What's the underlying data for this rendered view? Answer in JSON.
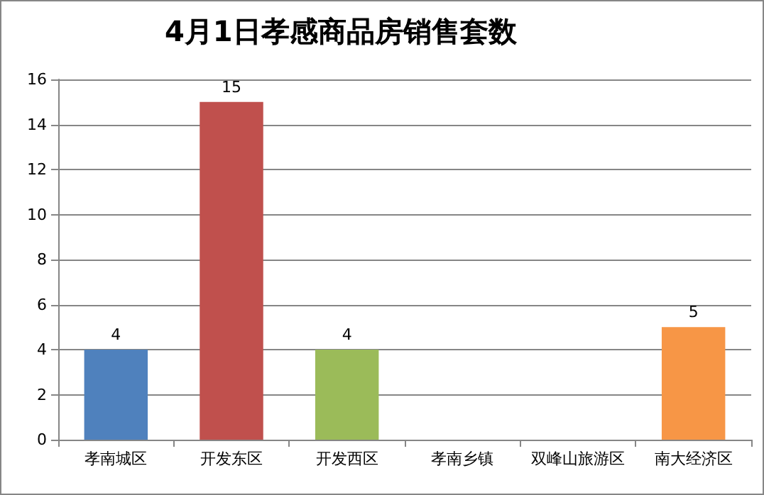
{
  "chart_data": {
    "type": "bar",
    "title": "4月1日孝感商品房销售套数",
    "categories": [
      "孝南城区",
      "开发东区",
      "开发西区",
      "孝南乡镇",
      "双峰山旅游区",
      "南大经济区"
    ],
    "values": [
      4,
      15,
      4,
      0,
      0,
      5
    ],
    "colors": [
      "#4f81bd",
      "#c0504d",
      "#9bbb59",
      "#8064a2",
      "#4bacc6",
      "#f79646"
    ],
    "value_labels": [
      "4",
      "15",
      "4",
      null,
      null,
      "5"
    ],
    "ylim": [
      0,
      16
    ],
    "yticks": [
      0,
      2,
      4,
      6,
      8,
      10,
      12,
      14,
      16
    ],
    "grid": "y"
  }
}
